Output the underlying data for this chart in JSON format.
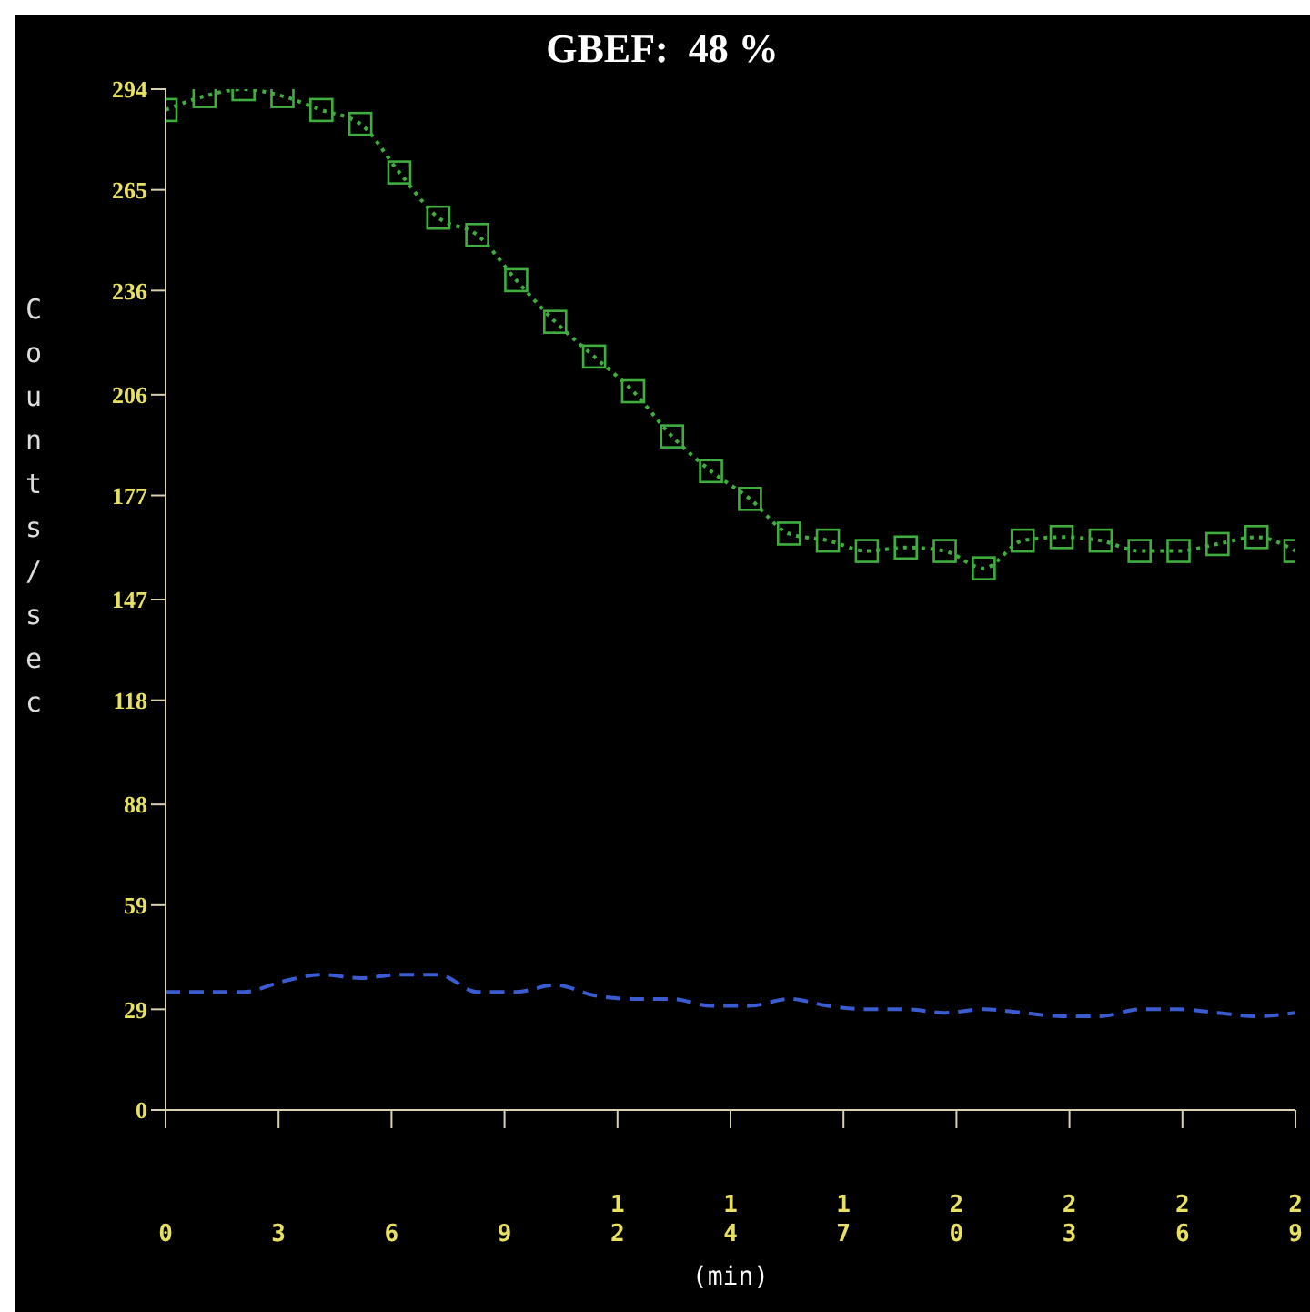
{
  "chart_data": {
    "type": "line",
    "title": "GBEF:  48 %",
    "xlabel": "(min)",
    "ylabel": "Counts/sec",
    "x": [
      0,
      1,
      2,
      3,
      4,
      5,
      6,
      7,
      8,
      9,
      10,
      11,
      12,
      13,
      14,
      15,
      16,
      17,
      18,
      19,
      20,
      21,
      22,
      23,
      24,
      25,
      26,
      27,
      28,
      29
    ],
    "series": [
      {
        "color": "#3fae3f",
        "marker": "square",
        "line_style": "dotted",
        "values": [
          288,
          292,
          294,
          292,
          288,
          284,
          270,
          257,
          252,
          239,
          227,
          217,
          207,
          194,
          184,
          176,
          166,
          164,
          161,
          162,
          161,
          156,
          164,
          165,
          164,
          161,
          161,
          163,
          165,
          161
        ]
      },
      {
        "color": "#3b5bd0",
        "marker": "none",
        "line_style": "dashed",
        "values": [
          34,
          34,
          34,
          37,
          39,
          38,
          39,
          39,
          34,
          34,
          36,
          33,
          32,
          32,
          30,
          30,
          32,
          30,
          29,
          29,
          28,
          29,
          28,
          27,
          27,
          29,
          29,
          28,
          27,
          28
        ]
      }
    ],
    "xlim": [
      0,
      29
    ],
    "xticks": [
      0,
      {
        "value": 2.9,
        "label": "3"
      },
      {
        "value": 5.8,
        "label": "6"
      },
      {
        "value": 8.7,
        "label": "9"
      },
      {
        "value": 11.6,
        "label": "12"
      },
      {
        "value": 14.5,
        "label": "14"
      },
      {
        "value": 17.4,
        "label": "17"
      },
      {
        "value": 20.3,
        "label": "20"
      },
      {
        "value": 23.2,
        "label": "23"
      },
      {
        "value": 26.1,
        "label": "26"
      },
      29
    ],
    "ylim": [
      0,
      294
    ],
    "yticks": [
      0,
      29,
      59,
      88,
      118,
      147,
      177,
      206,
      236,
      265,
      294
    ],
    "grid": false,
    "legend": false
  }
}
